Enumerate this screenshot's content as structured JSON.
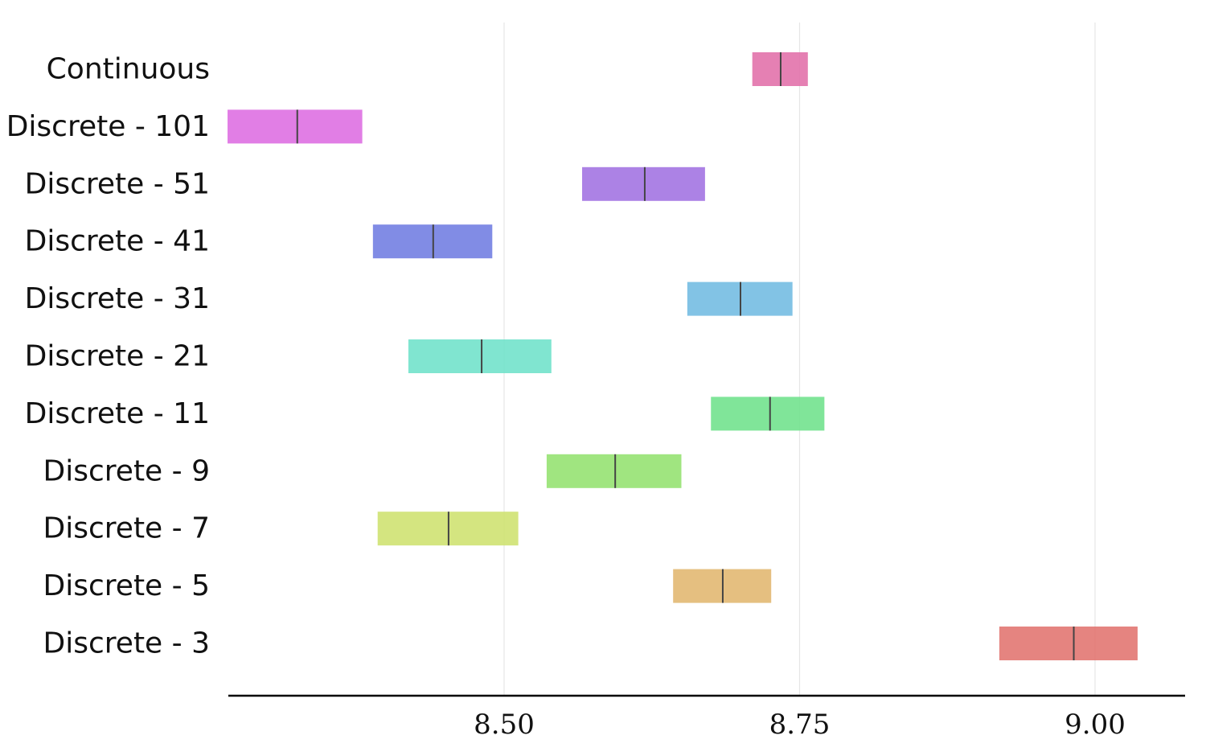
{
  "chart_data": {
    "type": "boxplot-range",
    "title": "",
    "xlabel": "",
    "ylabel": "",
    "xlim": [
      8.266,
      9.075
    ],
    "xticks": [
      8.5,
      8.75,
      9.0
    ],
    "xtick_labels": [
      "8.50",
      "8.75",
      "9.00"
    ],
    "grid": "vertical",
    "legend": "none",
    "series": [
      {
        "label": "Continuous",
        "low": 8.71,
        "mid": 8.734,
        "high": 8.757,
        "color": "#e06aa6"
      },
      {
        "label": "Discrete - 101",
        "low": 8.266,
        "mid": 8.325,
        "high": 8.38,
        "color": "#dc67e0"
      },
      {
        "label": "Discrete - 51",
        "low": 8.566,
        "mid": 8.619,
        "high": 8.67,
        "color": "#9e6ce0"
      },
      {
        "label": "Discrete - 41",
        "low": 8.389,
        "mid": 8.44,
        "high": 8.49,
        "color": "#6b78e0"
      },
      {
        "label": "Discrete - 31",
        "low": 8.655,
        "mid": 8.7,
        "high": 8.744,
        "color": "#6cb8e0"
      },
      {
        "label": "Discrete - 21",
        "low": 8.419,
        "mid": 8.481,
        "high": 8.54,
        "color": "#6ae0c8"
      },
      {
        "label": "Discrete - 11",
        "low": 8.675,
        "mid": 8.725,
        "high": 8.771,
        "color": "#6ae087"
      },
      {
        "label": "Discrete - 9",
        "low": 8.536,
        "mid": 8.594,
        "high": 8.65,
        "color": "#8fe06a"
      },
      {
        "label": "Discrete - 7",
        "low": 8.393,
        "mid": 8.453,
        "high": 8.512,
        "color": "#cde06a"
      },
      {
        "label": "Discrete - 5",
        "low": 8.643,
        "mid": 8.685,
        "high": 8.726,
        "color": "#e0b46a"
      },
      {
        "label": "Discrete - 3",
        "low": 8.919,
        "mid": 8.982,
        "high": 9.036,
        "color": "#e06f6a"
      }
    ]
  }
}
